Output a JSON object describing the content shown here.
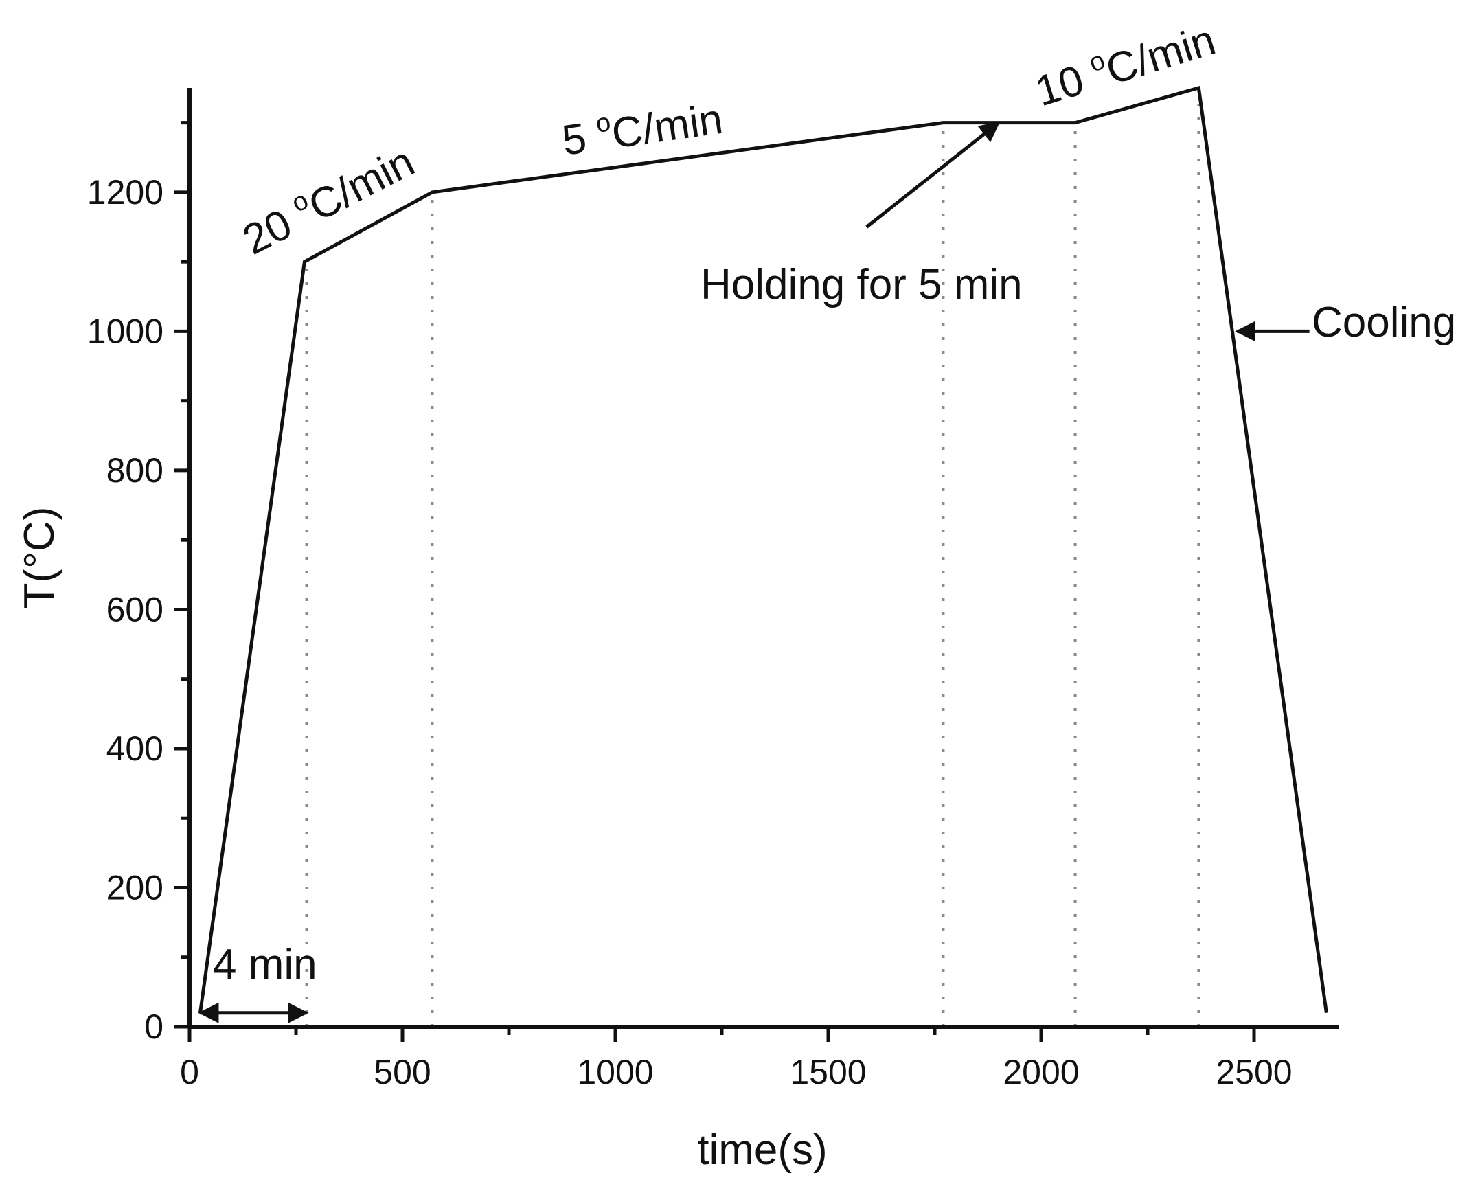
{
  "chart_data": {
    "type": "line",
    "xlabel": "time(s)",
    "ylabel": "T(°C)",
    "xlim": [
      0,
      2700
    ],
    "ylim": [
      0,
      1350
    ],
    "x_ticks": [
      0,
      500,
      1000,
      1500,
      2000,
      2500
    ],
    "x_tick_labels": [
      "0",
      "500",
      "1000",
      "1500",
      "2000",
      "2500"
    ],
    "y_ticks": [
      0,
      200,
      400,
      600,
      800,
      1000,
      1200
    ],
    "y_tick_labels": [
      "0",
      "200",
      "400",
      "600",
      "800",
      "1000",
      "1200"
    ],
    "grid": false,
    "series": [
      {
        "x": [
          25,
          270,
          570,
          1770,
          2080,
          2370,
          2670
        ],
        "y": [
          20,
          1100,
          1200,
          1300,
          1300,
          1350,
          20
        ]
      }
    ],
    "dotted_verticals": [
      {
        "x": 275,
        "y": 1100
      },
      {
        "x": 570,
        "y": 1200
      },
      {
        "x": 1770,
        "y": 1300
      },
      {
        "x": 2080,
        "y": 1300
      },
      {
        "x": 2370,
        "y": 1350
      }
    ],
    "annotations": {
      "rate1": {
        "pre": "20 ",
        "sup": "o",
        "post": "C/min"
      },
      "rate2": {
        "pre": "5 ",
        "sup": "o",
        "post": "C/min"
      },
      "rate3": {
        "pre": "10 ",
        "sup": "o",
        "post": "C/min"
      },
      "holding": "Holding for 5 min",
      "cooling": "Cooling",
      "duration": "4 min"
    },
    "arrows": {
      "holding": {
        "from": [
          1590,
          1150
        ],
        "to": [
          1900,
          1300
        ]
      },
      "cooling": {
        "from": [
          2630,
          1000
        ],
        "to": [
          2460,
          1000
        ]
      },
      "duration": {
        "from": [
          25,
          20
        ],
        "to": [
          275,
          20
        ]
      }
    }
  }
}
